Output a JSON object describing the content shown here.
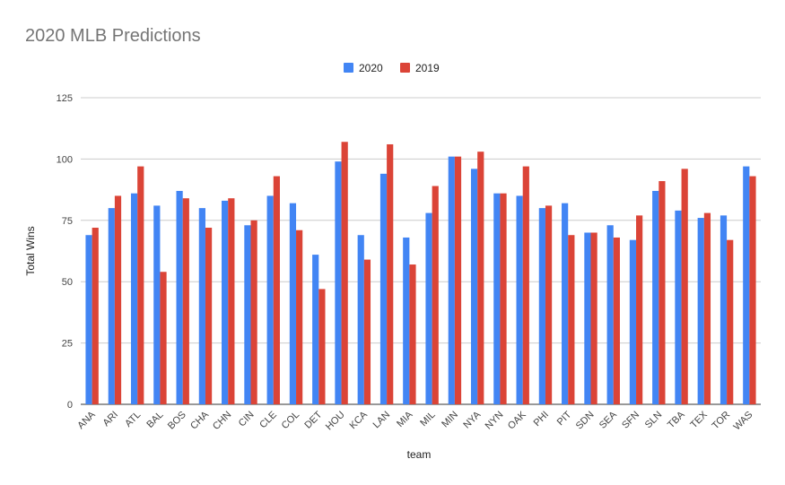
{
  "chart_data": {
    "type": "bar",
    "title": "2020 MLB Predictions",
    "xlabel": "team",
    "ylabel": "Total Wins",
    "ylim": [
      0,
      125
    ],
    "yticks": [
      0,
      25,
      50,
      75,
      100,
      125
    ],
    "grid": true,
    "legend_position": "top-center",
    "categories": [
      "ANA",
      "ARI",
      "ATL",
      "BAL",
      "BOS",
      "CHA",
      "CHN",
      "CIN",
      "CLE",
      "COL",
      "DET",
      "HOU",
      "KCA",
      "LAN",
      "MIA",
      "MIL",
      "MIN",
      "NYA",
      "NYN",
      "OAK",
      "PHI",
      "PIT",
      "SDN",
      "SEA",
      "SFN",
      "SLN",
      "TBA",
      "TEX",
      "TOR",
      "WAS"
    ],
    "series": [
      {
        "name": "2020",
        "color": "#4285f4",
        "values": [
          69,
          80,
          86,
          81,
          87,
          80,
          83,
          73,
          85,
          82,
          61,
          99,
          69,
          94,
          68,
          78,
          101,
          96,
          86,
          85,
          80,
          82,
          70,
          73,
          67,
          87,
          79,
          76,
          77,
          97
        ]
      },
      {
        "name": "2019",
        "color": "#db4437",
        "values": [
          72,
          85,
          97,
          54,
          84,
          72,
          84,
          75,
          93,
          71,
          47,
          107,
          59,
          106,
          57,
          89,
          101,
          103,
          86,
          97,
          81,
          69,
          70,
          68,
          77,
          91,
          96,
          78,
          67,
          93
        ]
      }
    ]
  }
}
